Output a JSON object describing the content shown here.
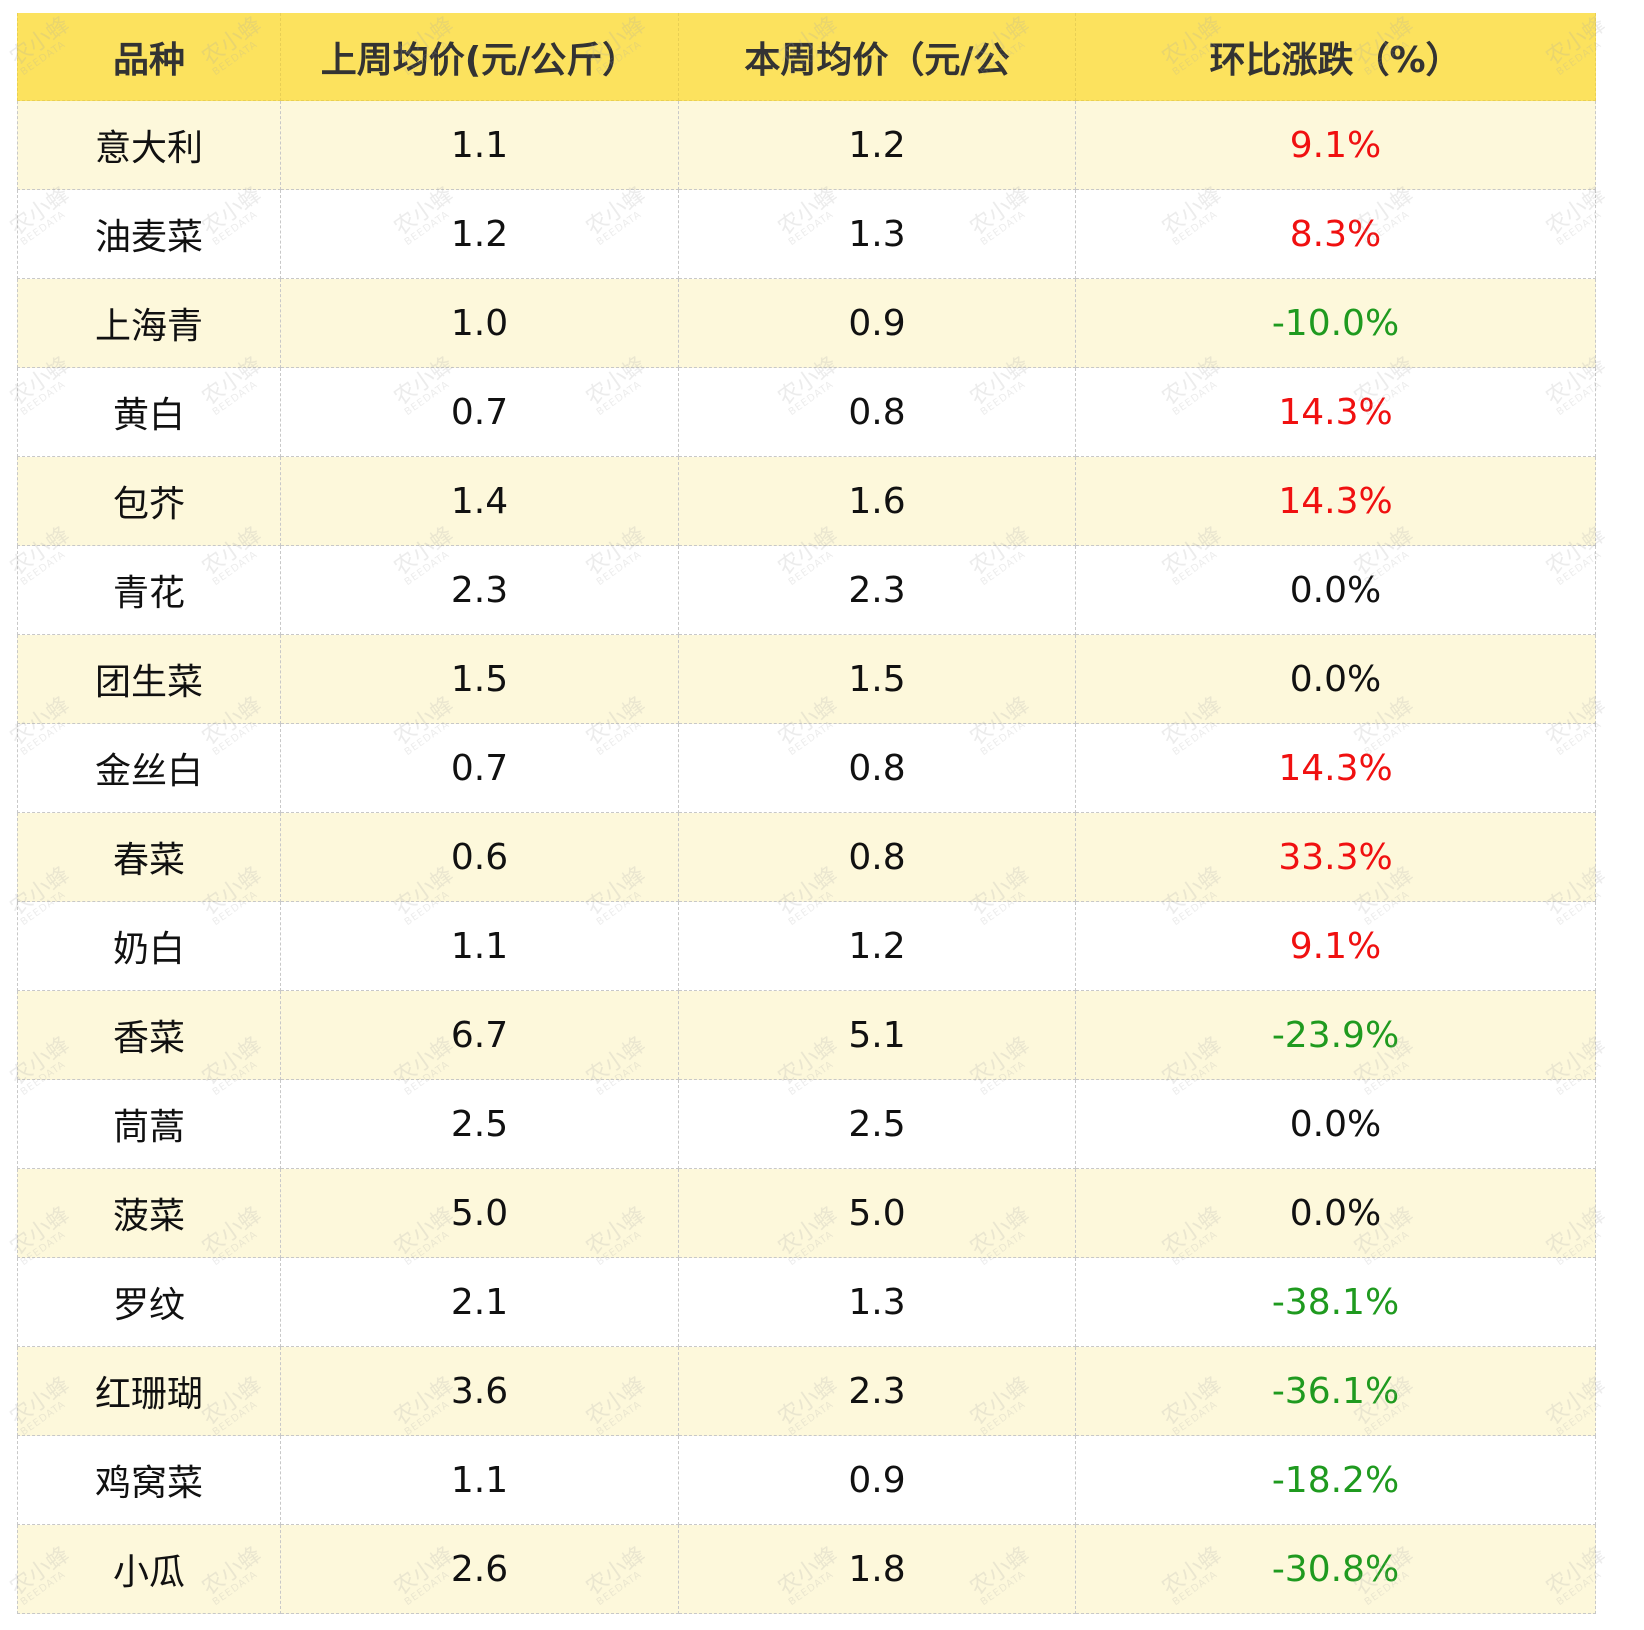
{
  "watermark": {
    "brand": "农小蜂",
    "sub": "BEEDATA"
  },
  "change_colors": {
    "up": "#f01010",
    "down": "#1f9a1f",
    "flat": "#111111"
  },
  "table": {
    "header": [
      "品种",
      "上周均价(元/公斤）",
      "本周均价（元/公",
      "环比涨跌（%）"
    ],
    "rows": [
      [
        "意大利",
        "1.1",
        "1.2",
        "9.1%"
      ],
      [
        "油麦菜",
        "1.2",
        "1.3",
        "8.3%"
      ],
      [
        "上海青",
        "1.0",
        "0.9",
        "-10.0%"
      ],
      [
        "黄白",
        "0.7",
        "0.8",
        "14.3%"
      ],
      [
        "包芥",
        "1.4",
        "1.6",
        "14.3%"
      ],
      [
        "青花",
        "2.3",
        "2.3",
        "0.0%"
      ],
      [
        "团生菜",
        "1.5",
        "1.5",
        "0.0%"
      ],
      [
        "金丝白",
        "0.7",
        "0.8",
        "14.3%"
      ],
      [
        "春菜",
        "0.6",
        "0.8",
        "33.3%"
      ],
      [
        "奶白",
        "1.1",
        "1.2",
        "9.1%"
      ],
      [
        "香菜",
        "6.7",
        "5.1",
        "-23.9%"
      ],
      [
        "茼蒿",
        "2.5",
        "2.5",
        "0.0%"
      ],
      [
        "菠菜",
        "5.0",
        "5.0",
        "0.0%"
      ],
      [
        "罗纹",
        "2.1",
        "1.3",
        "-38.1%"
      ],
      [
        "红珊瑚",
        "3.6",
        "2.3",
        "-36.1%"
      ],
      [
        "鸡窝菜",
        "1.1",
        "0.9",
        "-18.2%"
      ],
      [
        "小瓜",
        "2.6",
        "1.8",
        "-30.8%"
      ]
    ]
  }
}
